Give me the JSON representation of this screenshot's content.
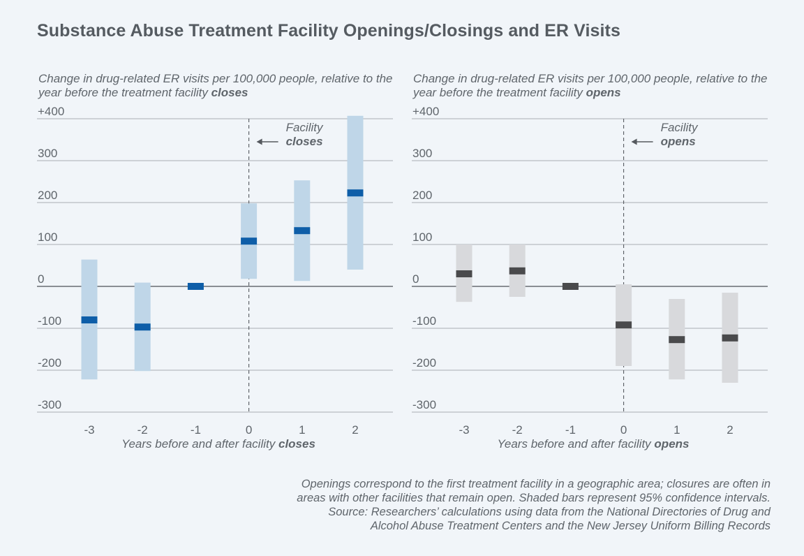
{
  "title": "Substance Abuse Treatment Facility Openings/Closings and ER Visits",
  "note_lines": [
    "Openings correspond to the first treatment facility in a geographic area; closures are often in",
    "areas with other facilities that remain open. Shaded bars represent 95% confidence intervals.",
    "Source: Researchers’ calculations using data from the National Directories of Drug and",
    "Alcohol Abuse Treatment Centers and the New Jersey Uniform Billing Records"
  ],
  "colors": {
    "closes_point": "#0e5ea8",
    "closes_ci": "#bfd6e8",
    "opens_point": "#4a4a4c",
    "opens_ci": "#d8d9dc"
  },
  "chart_data": [
    {
      "type": "bar",
      "subtitle_pre": "Change in drug-related ER visits per 100,000 people, relative to the year before the treatment facility",
      "subtitle_bold": "closes",
      "xlabel_pre": "Years before and after facility",
      "xlabel_bold": "closes",
      "categories": [
        "-3",
        "-2",
        "-1",
        "0",
        "1",
        "2"
      ],
      "x": [
        -3,
        -2,
        -1,
        0,
        1,
        2
      ],
      "values": [
        -80,
        -97,
        0,
        108,
        133,
        223
      ],
      "ci_low": [
        -222,
        -202,
        null,
        18,
        13,
        40
      ],
      "ci_high": [
        64,
        9,
        null,
        198,
        253,
        407
      ],
      "ylim": [
        -300,
        400
      ],
      "yticks": [
        -300,
        -200,
        -100,
        0,
        100,
        200,
        300,
        400
      ],
      "ytick_labels": [
        "-300",
        "-200",
        "-100",
        "0",
        "100",
        "200",
        "300",
        "+400"
      ],
      "annotation": {
        "line1": "Facility",
        "line2": "closes",
        "x": 0
      },
      "grid": true
    },
    {
      "type": "bar",
      "subtitle_pre": "Change in drug-related ER visits per 100,000 people, relative to the year before the treatment facility",
      "subtitle_bold": "opens",
      "xlabel_pre": "Years before and after facility",
      "xlabel_bold": "opens",
      "categories": [
        "-3",
        "-2",
        "-1",
        "0",
        "1",
        "2"
      ],
      "x": [
        -3,
        -2,
        -1,
        0,
        1,
        2
      ],
      "values": [
        30,
        37,
        0,
        -92,
        -127,
        -123
      ],
      "ci_low": [
        -37,
        -25,
        null,
        -190,
        -222,
        -230
      ],
      "ci_high": [
        100,
        100,
        null,
        5,
        -30,
        -15
      ],
      "ylim": [
        -300,
        400
      ],
      "yticks": [
        -300,
        -200,
        -100,
        0,
        100,
        200,
        300,
        400
      ],
      "ytick_labels": [
        "-300",
        "-200",
        "-100",
        "0",
        "100",
        "200",
        "300",
        "+400"
      ],
      "annotation": {
        "line1": "Facility",
        "line2": "opens",
        "x": 0
      },
      "grid": true
    }
  ]
}
